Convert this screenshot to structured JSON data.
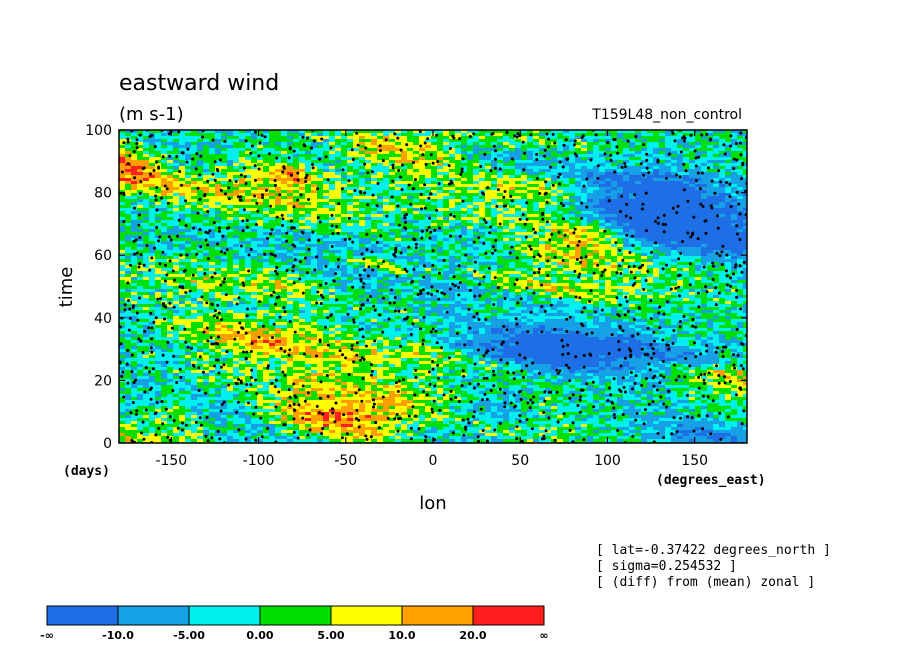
{
  "chart_data": {
    "type": "heatmap",
    "title": "eastward wind",
    "subtitle": "(m s-1)",
    "run_label": "T159L48_non_control",
    "xlabel": "lon",
    "x_units": "(degrees_east)",
    "ylabel": "time",
    "y_units": "(days)",
    "xlim": [
      -180,
      180
    ],
    "ylim": [
      0,
      100
    ],
    "x_ticks": [
      "-150",
      "-100",
      "-50",
      "0",
      "50",
      "100",
      "150"
    ],
    "x_tick_values": [
      -150,
      -100,
      -50,
      0,
      50,
      100,
      150
    ],
    "y_ticks": [
      "0",
      "20",
      "40",
      "60",
      "80",
      "100"
    ],
    "y_tick_values": [
      0,
      20,
      40,
      60,
      80,
      100
    ],
    "info_lines": [
      "[ lat=-0.37422 degrees_north ]",
      "[ sigma=0.254532 ]",
      "[ (diff) from (mean) zonal ]"
    ],
    "colorbar": {
      "boundaries": [
        "-∞",
        "-10.0",
        "-5.00",
        "0.00",
        "5.00",
        "10.0",
        "20.0",
        "∞"
      ],
      "colors": [
        "#1e6ee6",
        "#16a0e6",
        "#00f0f0",
        "#00e000",
        "#ffff00",
        "#ffa000",
        "#ff1e1e"
      ]
    },
    "markers": "black dots at missing/flagged points (dense)"
  }
}
